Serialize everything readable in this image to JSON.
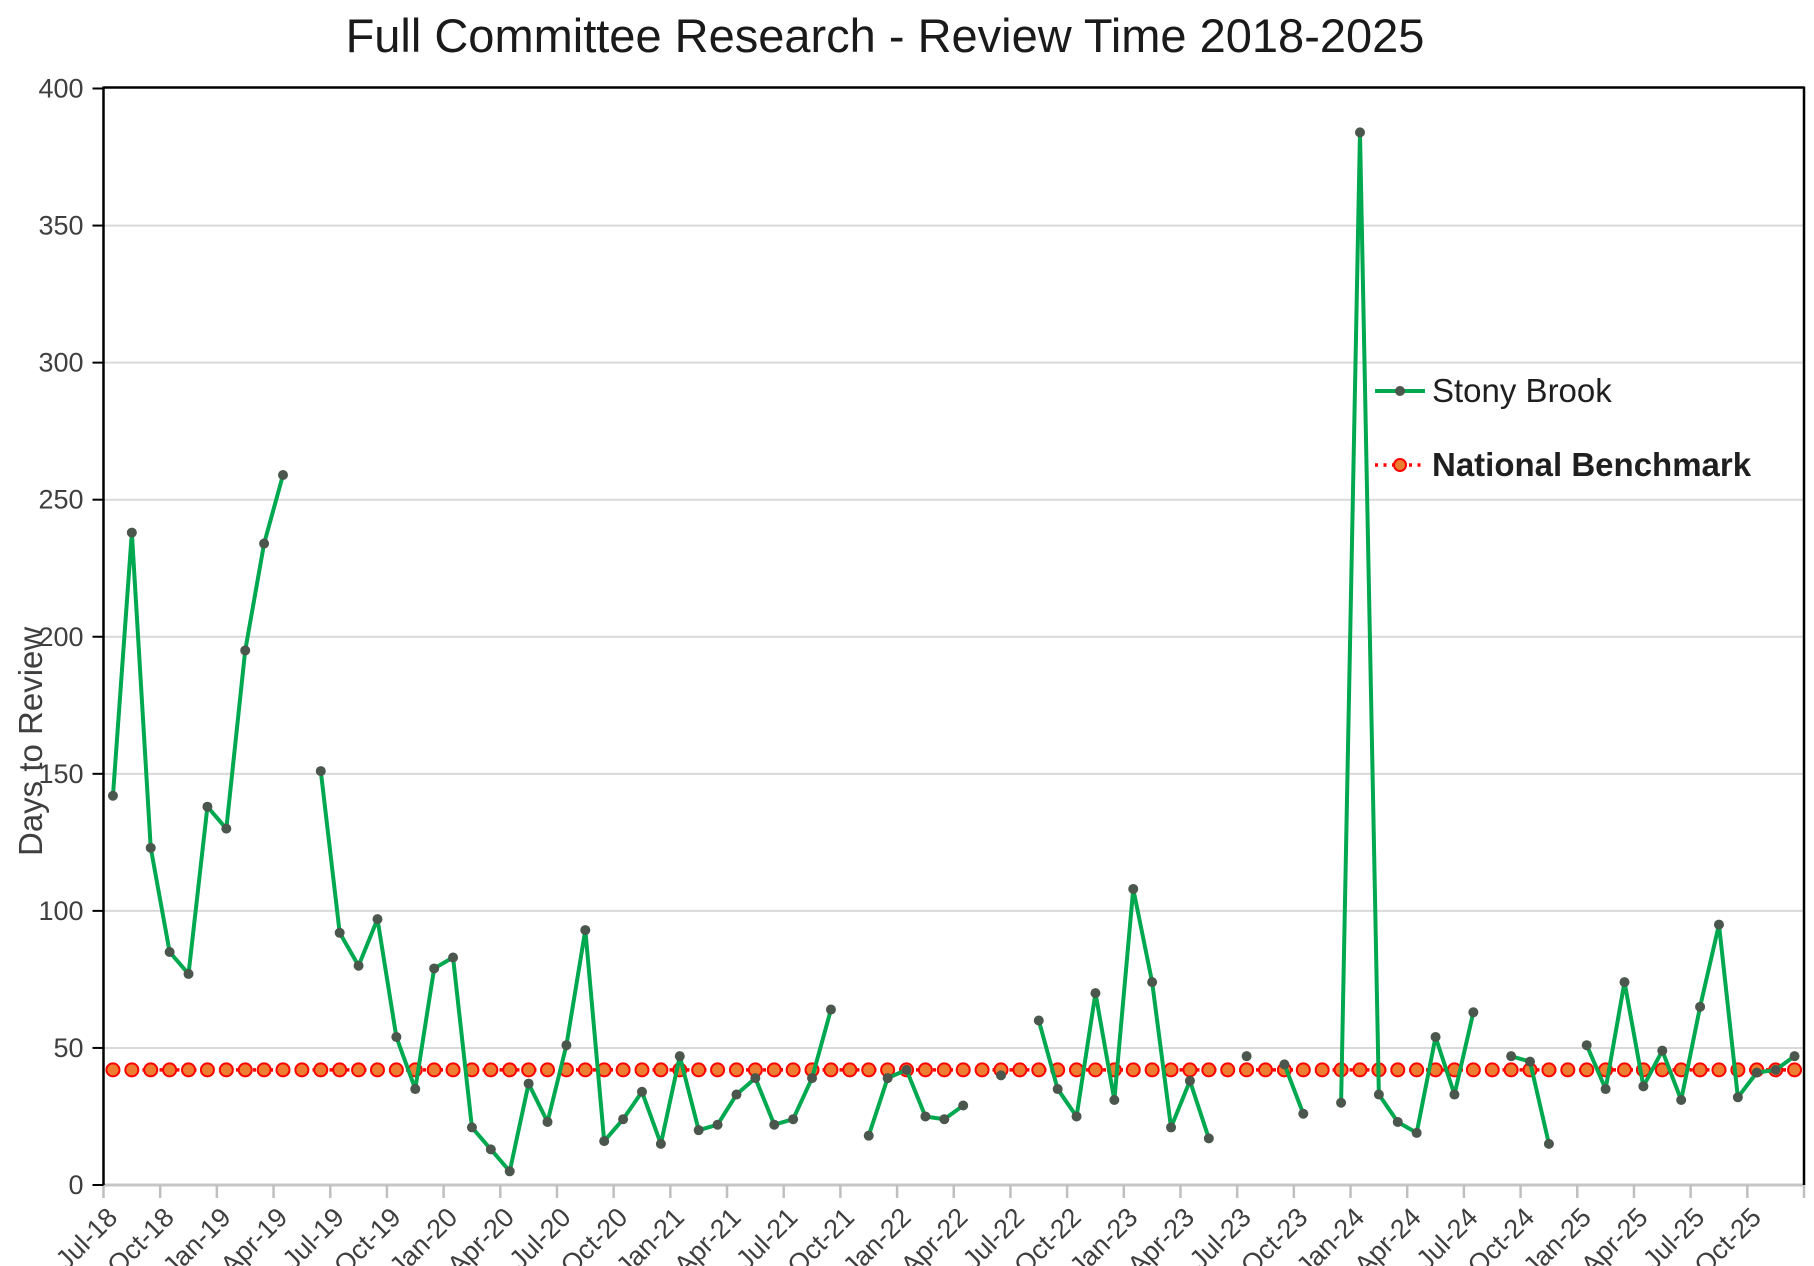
{
  "title": "Full Committee Research - Review Time 2018-2025",
  "chart_data": {
    "type": "line",
    "title": "Full Committee Research - Review Time 2018-2025",
    "xlabel": "",
    "ylabel": "Days to Review",
    "ylim": [
      0,
      400
    ],
    "ytick_step": 50,
    "x_tick_step": 3,
    "grid": true,
    "legend_position": "right-center",
    "categories": [
      "Jul-18",
      "Aug-18",
      "Sep-18",
      "Oct-18",
      "Nov-18",
      "Dec-18",
      "Jan-19",
      "Feb-19",
      "Mar-19",
      "Apr-19",
      "May-19",
      "Jun-19",
      "Jul-19",
      "Aug-19",
      "Sep-19",
      "Oct-19",
      "Nov-19",
      "Dec-19",
      "Jan-20",
      "Feb-20",
      "Mar-20",
      "Apr-20",
      "May-20",
      "Jun-20",
      "Jul-20",
      "Aug-20",
      "Sep-20",
      "Oct-20",
      "Nov-20",
      "Dec-20",
      "Jan-21",
      "Feb-21",
      "Mar-21",
      "Apr-21",
      "May-21",
      "Jun-21",
      "Jul-21",
      "Aug-21",
      "Sep-21",
      "Oct-21",
      "Nov-21",
      "Dec-21",
      "Jan-22",
      "Feb-22",
      "Mar-22",
      "Apr-22",
      "May-22",
      "Jun-22",
      "Jul-22",
      "Aug-22",
      "Sep-22",
      "Oct-22",
      "Nov-22",
      "Dec-22",
      "Jan-23",
      "Feb-23",
      "Mar-23",
      "Apr-23",
      "May-23",
      "Jun-23",
      "Jul-23",
      "Aug-23",
      "Sep-23",
      "Oct-23",
      "Nov-23",
      "Dec-23",
      "Jan-24",
      "Feb-24",
      "Mar-24",
      "Apr-24",
      "May-24",
      "Jun-24",
      "Jul-24",
      "Aug-24",
      "Sep-24",
      "Oct-24",
      "Nov-24",
      "Dec-24",
      "Jan-25",
      "Feb-25",
      "Mar-25",
      "Apr-25",
      "May-25",
      "Jun-25",
      "Jul-25",
      "Aug-25",
      "Sep-25",
      "Oct-25",
      "Nov-25",
      "Dec-25"
    ],
    "series": [
      {
        "name": "Stony Brook",
        "type": "line",
        "color": "#00A84F",
        "marker_color": "#4B564C",
        "values": [
          142,
          238,
          123,
          85,
          77,
          138,
          130,
          195,
          234,
          259,
          null,
          151,
          92,
          80,
          97,
          54,
          35,
          79,
          83,
          21,
          13,
          5,
          37,
          23,
          51,
          93,
          16,
          24,
          34,
          15,
          47,
          20,
          22,
          33,
          39,
          22,
          24,
          39,
          64,
          null,
          18,
          39,
          42,
          25,
          24,
          29,
          null,
          40,
          null,
          60,
          35,
          25,
          70,
          31,
          108,
          74,
          21,
          38,
          17,
          null,
          47,
          null,
          44,
          26,
          null,
          30,
          384,
          33,
          23,
          19,
          54,
          33,
          63,
          null,
          47,
          45,
          15,
          null,
          51,
          35,
          74,
          36,
          49,
          31,
          65,
          95,
          32,
          41,
          42,
          47
        ]
      },
      {
        "name": "National Benchmark",
        "type": "constant-line",
        "color": "#FF0000",
        "marker_fill": "#ED7D31",
        "constant_value": 42
      }
    ]
  }
}
